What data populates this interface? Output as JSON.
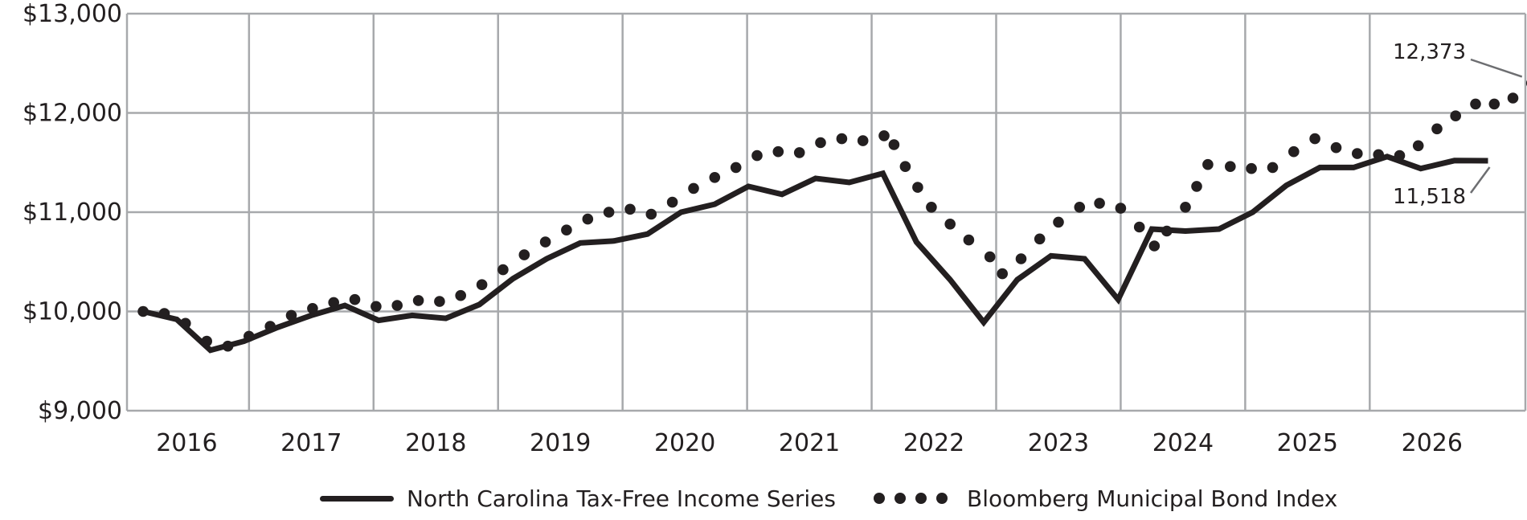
{
  "chart_data": {
    "type": "line",
    "ylim": [
      9000,
      13000
    ],
    "yticks": [
      9000,
      10000,
      11000,
      12000,
      13000
    ],
    "ytick_labels": [
      "$9,000",
      "$10,000",
      "$11,000",
      "$12,000",
      "$13,000"
    ],
    "xlim": [
      2015.27,
      2026.5
    ],
    "x_tick_labels": [
      "2016",
      "2017",
      "2018",
      "2019",
      "2020",
      "2021",
      "2022",
      "2023",
      "2024",
      "2025",
      "2026"
    ],
    "x_label_positions": [
      2015.75,
      2016.75,
      2017.75,
      2018.75,
      2019.75,
      2020.75,
      2021.75,
      2022.75,
      2023.75,
      2024.75,
      2025.75
    ],
    "x_gridlines": [
      2016.25,
      2017.25,
      2018.25,
      2019.25,
      2020.25,
      2021.25,
      2022.25,
      2023.25,
      2024.25,
      2025.25
    ],
    "grid": true,
    "legend_position": "bottom",
    "series": [
      {
        "name": "North Carolina Tax-Free Income Series",
        "style": "solid",
        "points": [
          [
            2015.4,
            10000
          ],
          [
            2015.67,
            9920
          ],
          [
            2015.94,
            9610
          ],
          [
            2016.21,
            9700
          ],
          [
            2016.48,
            9840
          ],
          [
            2016.75,
            9960
          ],
          [
            2017.02,
            10060
          ],
          [
            2017.29,
            9910
          ],
          [
            2017.56,
            9960
          ],
          [
            2017.83,
            9930
          ],
          [
            2018.1,
            10070
          ],
          [
            2018.37,
            10330
          ],
          [
            2018.64,
            10530
          ],
          [
            2018.91,
            10690
          ],
          [
            2019.18,
            10710
          ],
          [
            2019.45,
            10780
          ],
          [
            2019.72,
            11000
          ],
          [
            2019.99,
            11080
          ],
          [
            2020.26,
            11260
          ],
          [
            2020.53,
            11180
          ],
          [
            2020.8,
            11340
          ],
          [
            2021.07,
            11300
          ],
          [
            2021.34,
            11390
          ],
          [
            2021.61,
            10700
          ],
          [
            2021.88,
            10320
          ],
          [
            2022.15,
            9890
          ],
          [
            2022.42,
            10320
          ],
          [
            2022.69,
            10560
          ],
          [
            2022.96,
            10530
          ],
          [
            2023.23,
            10120
          ],
          [
            2023.5,
            10830
          ],
          [
            2023.77,
            10810
          ],
          [
            2024.04,
            10830
          ],
          [
            2024.31,
            11000
          ],
          [
            2024.58,
            11270
          ],
          [
            2024.85,
            11450
          ],
          [
            2025.12,
            11450
          ],
          [
            2025.39,
            11560
          ],
          [
            2025.66,
            11440
          ],
          [
            2025.93,
            11520
          ],
          [
            2026.2,
            11518
          ]
        ]
      },
      {
        "name": "Bloomberg Municipal Bond Index",
        "style": "dotted",
        "points": [
          [
            2015.4,
            10000
          ],
          [
            2015.57,
            9980
          ],
          [
            2015.74,
            9880
          ],
          [
            2015.91,
            9700
          ],
          [
            2016.08,
            9650
          ],
          [
            2016.25,
            9750
          ],
          [
            2016.42,
            9850
          ],
          [
            2016.59,
            9960
          ],
          [
            2016.76,
            10030
          ],
          [
            2016.93,
            10090
          ],
          [
            2017.1,
            10120
          ],
          [
            2017.27,
            10050
          ],
          [
            2017.44,
            10060
          ],
          [
            2017.61,
            10110
          ],
          [
            2017.78,
            10100
          ],
          [
            2017.95,
            10160
          ],
          [
            2018.12,
            10270
          ],
          [
            2018.29,
            10420
          ],
          [
            2018.46,
            10570
          ],
          [
            2018.63,
            10700
          ],
          [
            2018.8,
            10820
          ],
          [
            2018.97,
            10930
          ],
          [
            2019.14,
            11000
          ],
          [
            2019.31,
            11030
          ],
          [
            2019.48,
            10980
          ],
          [
            2019.65,
            11100
          ],
          [
            2019.82,
            11240
          ],
          [
            2019.99,
            11350
          ],
          [
            2020.16,
            11450
          ],
          [
            2020.33,
            11570
          ],
          [
            2020.5,
            11610
          ],
          [
            2020.67,
            11600
          ],
          [
            2020.84,
            11700
          ],
          [
            2021.01,
            11740
          ],
          [
            2021.18,
            11720
          ],
          [
            2021.35,
            11770
          ],
          [
            2021.43,
            11680
          ],
          [
            2021.52,
            11460
          ],
          [
            2021.62,
            11250
          ],
          [
            2021.73,
            11050
          ],
          [
            2021.88,
            10880
          ],
          [
            2022.03,
            10720
          ],
          [
            2022.2,
            10550
          ],
          [
            2022.3,
            10380
          ],
          [
            2022.45,
            10530
          ],
          [
            2022.6,
            10730
          ],
          [
            2022.75,
            10900
          ],
          [
            2022.92,
            11050
          ],
          [
            2023.08,
            11090
          ],
          [
            2023.25,
            11040
          ],
          [
            2023.4,
            10850
          ],
          [
            2023.52,
            10660
          ],
          [
            2023.62,
            10810
          ],
          [
            2023.77,
            11050
          ],
          [
            2023.86,
            11260
          ],
          [
            2023.95,
            11480
          ],
          [
            2024.13,
            11460
          ],
          [
            2024.3,
            11440
          ],
          [
            2024.47,
            11450
          ],
          [
            2024.64,
            11610
          ],
          [
            2024.81,
            11740
          ],
          [
            2024.98,
            11650
          ],
          [
            2025.15,
            11590
          ],
          [
            2025.32,
            11580
          ],
          [
            2025.49,
            11570
          ],
          [
            2025.64,
            11670
          ],
          [
            2025.79,
            11840
          ],
          [
            2025.94,
            11970
          ],
          [
            2026.1,
            12090
          ],
          [
            2026.25,
            12090
          ],
          [
            2026.4,
            12150
          ],
          [
            2026.55,
            12300
          ]
        ]
      }
    ],
    "annotations": [
      {
        "text": "12,373",
        "series": 1
      },
      {
        "text": "11,518",
        "series": 0
      }
    ]
  }
}
